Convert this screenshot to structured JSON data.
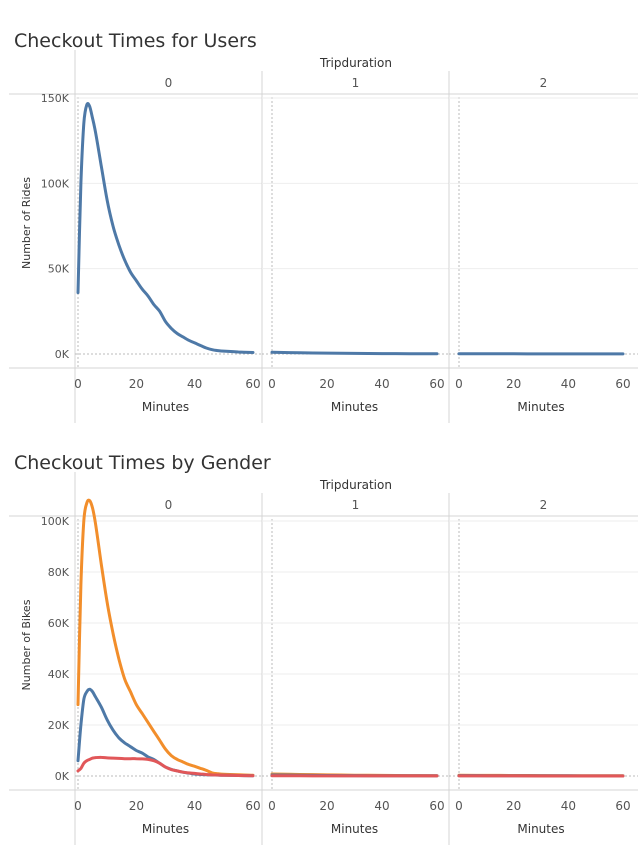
{
  "dashboards": [
    {
      "title": "Checkout Times for Users",
      "chart_data": {
        "type": "line",
        "title": "Checkout Times for Users",
        "column_header": "Tripduration",
        "panels": [
          "0",
          "1",
          "2"
        ],
        "xlabel": "Minutes",
        "ylabel": "Number of Rides",
        "xlim": [
          0,
          60
        ],
        "x_ticks": [
          "0",
          "20",
          "40",
          "60"
        ],
        "ylim": [
          0,
          150000
        ],
        "y_ticks": [
          {
            "value": 0,
            "label": "0K"
          },
          {
            "value": 50000,
            "label": "50K"
          },
          {
            "value": 100000,
            "label": "100K"
          },
          {
            "value": 150000,
            "label": "150K"
          }
        ],
        "series": [
          {
            "color": "#4e79a7",
            "panel_values": [
              {
                "x": [
                  0,
                  1,
                  2,
                  3,
                  4,
                  5,
                  6,
                  8,
                  10,
                  12,
                  14,
                  16,
                  18,
                  20,
                  22,
                  24,
                  26,
                  28,
                  30,
                  32,
                  34,
                  36,
                  38,
                  40,
                  42,
                  44,
                  46,
                  48,
                  50,
                  55,
                  60
                ],
                "y": [
                  36000,
                  100000,
                  135000,
                  146000,
                  145000,
                  138000,
                  130000,
                  110000,
                  90000,
                  75000,
                  64000,
                  55000,
                  48000,
                  43000,
                  38000,
                  34000,
                  29000,
                  25000,
                  19000,
                  15000,
                  12000,
                  10000,
                  8000,
                  6500,
                  5000,
                  3500,
                  2500,
                  2000,
                  1700,
                  1200,
                  900
                ]
              },
              {
                "x": [
                  0,
                  10,
                  20,
                  30,
                  40,
                  50,
                  60
                ],
                "y": [
                  1000,
                  700,
                  500,
                  350,
                  250,
                  150,
                  100
                ]
              },
              {
                "x": [
                  0,
                  10,
                  20,
                  30,
                  40,
                  50,
                  60
                ],
                "y": [
                  200,
                  150,
                  100,
                  80,
                  60,
                  50,
                  40
                ]
              }
            ]
          }
        ]
      }
    },
    {
      "title": "Checkout Times by Gender",
      "chart_data": {
        "type": "line",
        "title": "Checkout Times by Gender",
        "column_header": "Tripduration",
        "panels": [
          "0",
          "1",
          "2"
        ],
        "xlabel": "Minutes",
        "ylabel": "Number of Bikes",
        "xlim": [
          0,
          60
        ],
        "x_ticks": [
          "0",
          "20",
          "40",
          "60"
        ],
        "ylim": [
          0,
          110000
        ],
        "y_ticks": [
          {
            "value": 0,
            "label": "0K"
          },
          {
            "value": 20000,
            "label": "20K"
          },
          {
            "value": 40000,
            "label": "40K"
          },
          {
            "value": 60000,
            "label": "60K"
          },
          {
            "value": 80000,
            "label": "80K"
          },
          {
            "value": 100000,
            "label": "100K"
          }
        ],
        "series": [
          {
            "color": "#f28e2b",
            "panel_values": [
              {
                "x": [
                  0,
                  1,
                  2,
                  3,
                  4,
                  5,
                  6,
                  8,
                  10,
                  12,
                  14,
                  16,
                  18,
                  20,
                  22,
                  24,
                  26,
                  28,
                  30,
                  32,
                  34,
                  36,
                  38,
                  40,
                  42,
                  44,
                  46,
                  48,
                  50,
                  55,
                  60
                ],
                "y": [
                  28000,
                  75000,
                  100000,
                  107000,
                  108000,
                  105000,
                  99000,
                  83000,
                  68000,
                  56000,
                  46000,
                  38000,
                  33000,
                  28000,
                  24500,
                  21000,
                  17500,
                  14000,
                  10500,
                  8000,
                  6500,
                  5500,
                  4500,
                  3800,
                  3000,
                  2200,
                  1200,
                  900,
                  700,
                  500,
                  300
                ]
              },
              {
                "x": [
                  0,
                  10,
                  20,
                  30,
                  40,
                  50,
                  60
                ],
                "y": [
                  800,
                  600,
                  450,
                  320,
                  230,
                  150,
                  100
                ]
              },
              {
                "x": [
                  0,
                  10,
                  20,
                  30,
                  40,
                  50,
                  60
                ],
                "y": [
                  300,
                  250,
                  200,
                  150,
                  120,
                  100,
                  80
                ]
              }
            ]
          },
          {
            "color": "#4e79a7",
            "panel_values": [
              {
                "x": [
                  0,
                  1,
                  2,
                  3,
                  4,
                  5,
                  6,
                  8,
                  10,
                  12,
                  14,
                  16,
                  18,
                  20,
                  22,
                  24,
                  26,
                  28,
                  30,
                  32,
                  34,
                  36,
                  38,
                  40,
                  42,
                  44,
                  46,
                  48,
                  50,
                  55,
                  60
                ],
                "y": [
                  6000,
                  20000,
                  30000,
                  33000,
                  34000,
                  33000,
                  31000,
                  27000,
                  22000,
                  18000,
                  15000,
                  13000,
                  11500,
                  10000,
                  9000,
                  7500,
                  6500,
                  5000,
                  3500,
                  2600,
                  2000,
                  1500,
                  1100,
                  800,
                  600,
                  500,
                  400,
                  350,
                  300,
                  200,
                  100
                ]
              },
              {
                "x": [
                  0,
                  10,
                  20,
                  30,
                  40,
                  50,
                  60
                ],
                "y": [
                  400,
                  300,
                  200,
                  150,
                  100,
                  80,
                  60
                ]
              },
              {
                "x": [
                  0,
                  10,
                  20,
                  30,
                  40,
                  50,
                  60
                ],
                "y": [
                  150,
                  120,
                  100,
                  80,
                  60,
                  50,
                  40
                ]
              }
            ]
          },
          {
            "color": "#e15759",
            "panel_values": [
              {
                "x": [
                  0,
                  1,
                  2,
                  3,
                  4,
                  5,
                  6,
                  8,
                  10,
                  12,
                  14,
                  16,
                  18,
                  20,
                  22,
                  24,
                  26,
                  28,
                  30,
                  32,
                  34,
                  36,
                  38,
                  40,
                  42,
                  44,
                  46,
                  48,
                  50,
                  55,
                  60
                ],
                "y": [
                  2000,
                  3000,
                  5000,
                  6000,
                  6500,
                  7000,
                  7200,
                  7300,
                  7100,
                  7000,
                  6900,
                  6800,
                  6800,
                  6800,
                  6700,
                  6500,
                  6000,
                  5000,
                  3500,
                  2500,
                  2000,
                  1500,
                  1200,
                  1000,
                  800,
                  600,
                  450,
                  400,
                  300,
                  200,
                  100
                ]
              },
              {
                "x": [
                  0,
                  10,
                  20,
                  30,
                  40,
                  50,
                  60
                ],
                "y": [
                  80,
                  60,
                  50,
                  40,
                  30,
                  25,
                  20
                ]
              },
              {
                "x": [
                  0,
                  10,
                  20,
                  30,
                  40,
                  50,
                  60
                ],
                "y": [
                  30,
                  25,
                  20,
                  15,
                  12,
                  10,
                  8
                ]
              }
            ]
          }
        ]
      }
    }
  ]
}
